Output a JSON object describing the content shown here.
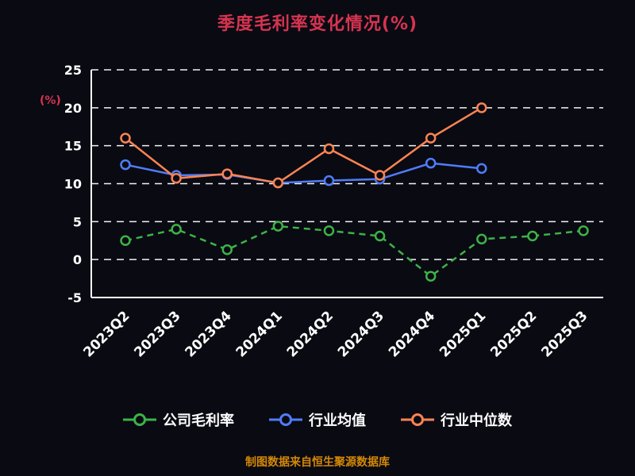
{
  "page": {
    "footer": "制图数据来自恒生聚源数据库"
  },
  "chart_data": {
    "type": "line",
    "title": "季度毛利率变化情况(%)",
    "ylabel": "(%)",
    "categories": [
      "2023Q2",
      "2023Q3",
      "2023Q4",
      "2024Q1",
      "2024Q2",
      "2024Q3",
      "2024Q4",
      "2025Q1",
      "2025Q2",
      "2025Q3"
    ],
    "series": [
      {
        "name": "公司毛利率",
        "color": "#3cb347",
        "dashed": true,
        "values": [
          2.5,
          4.0,
          1.3,
          4.4,
          3.8,
          3.1,
          -2.2,
          2.7,
          3.1,
          3.8
        ]
      },
      {
        "name": "行业均值",
        "color": "#4f7df9",
        "dashed": false,
        "values": [
          12.5,
          11.1,
          11.2,
          10.1,
          10.4,
          10.6,
          12.7,
          12.0
        ]
      },
      {
        "name": "行业中位数",
        "color": "#fc8452",
        "dashed": false,
        "values": [
          16.0,
          10.7,
          11.3,
          10.1,
          14.6,
          11.1,
          16.0,
          20.0
        ]
      }
    ],
    "ylim": [
      -5,
      25
    ],
    "yticks": [
      -5,
      0,
      5,
      10,
      15,
      20,
      25
    ],
    "grid": true,
    "legend_position": "bottom",
    "background": "#0a0a13",
    "title_color": "#d63450",
    "footer_color": "#d48806",
    "axis_color": "#ffffff"
  }
}
